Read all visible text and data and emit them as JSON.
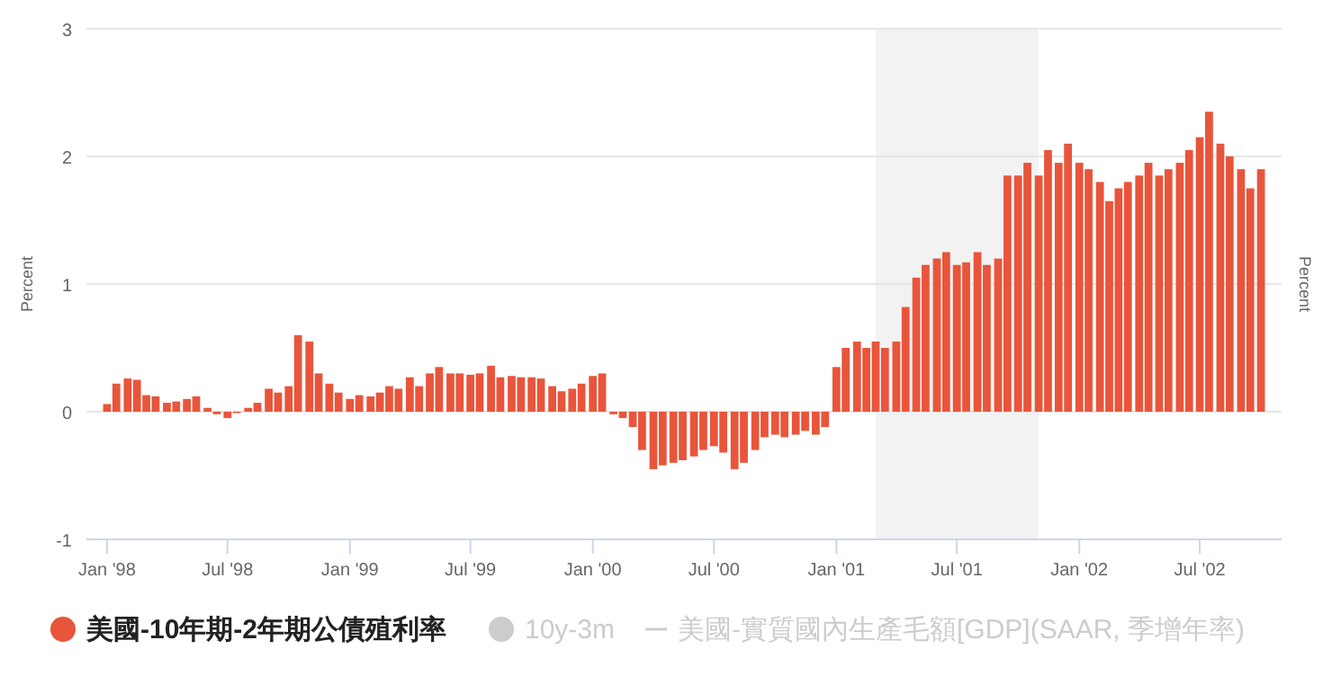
{
  "chart_data": {
    "type": "bar",
    "ylabel": "Percent",
    "y2label": "Percent",
    "x": [
      "1998-01-01",
      "1998-01-15",
      "1998-02-01",
      "1998-02-15",
      "1998-03-01",
      "1998-03-15",
      "1998-04-01",
      "1998-04-15",
      "1998-05-01",
      "1998-05-15",
      "1998-06-01",
      "1998-06-15",
      "1998-07-01",
      "1998-07-15",
      "1998-08-01",
      "1998-08-15",
      "1998-09-01",
      "1998-09-15",
      "1998-10-01",
      "1998-10-15",
      "1998-11-01",
      "1998-11-15",
      "1998-12-01",
      "1998-12-15",
      "1999-01-01",
      "1999-01-15",
      "1999-02-01",
      "1999-02-15",
      "1999-03-01",
      "1999-03-15",
      "1999-04-01",
      "1999-04-15",
      "1999-05-01",
      "1999-05-15",
      "1999-06-01",
      "1999-06-15",
      "1999-07-01",
      "1999-07-15",
      "1999-08-01",
      "1999-08-15",
      "1999-09-01",
      "1999-09-15",
      "1999-10-01",
      "1999-10-15",
      "1999-11-01",
      "1999-11-15",
      "1999-12-01",
      "1999-12-15",
      "2000-01-01",
      "2000-01-15",
      "2000-02-01",
      "2000-02-15",
      "2000-03-01",
      "2000-03-15",
      "2000-04-01",
      "2000-04-15",
      "2000-05-01",
      "2000-05-15",
      "2000-06-01",
      "2000-06-15",
      "2000-07-01",
      "2000-07-15",
      "2000-08-01",
      "2000-08-15",
      "2000-09-01",
      "2000-09-15",
      "2000-10-01",
      "2000-10-15",
      "2000-11-01",
      "2000-11-15",
      "2000-12-01",
      "2000-12-15",
      "2001-01-01",
      "2001-01-15",
      "2001-02-01",
      "2001-02-15",
      "2001-03-01",
      "2001-03-15",
      "2001-04-01",
      "2001-04-15",
      "2001-05-01",
      "2001-05-15",
      "2001-06-01",
      "2001-06-15",
      "2001-07-01",
      "2001-07-15",
      "2001-08-01",
      "2001-08-15",
      "2001-09-01",
      "2001-09-15",
      "2001-10-01",
      "2001-10-15",
      "2001-11-01",
      "2001-11-15",
      "2001-12-01",
      "2001-12-15",
      "2002-01-01",
      "2002-01-15",
      "2002-02-01",
      "2002-02-15",
      "2002-03-01",
      "2002-03-15",
      "2002-04-01",
      "2002-04-15",
      "2002-05-01",
      "2002-05-15",
      "2002-06-01",
      "2002-06-15",
      "2002-07-01",
      "2002-07-15",
      "2002-08-01",
      "2002-08-15",
      "2002-09-01",
      "2002-09-15",
      "2002-10-01"
    ],
    "series": [
      {
        "name": "美國-10年期-2年期公債殖利率",
        "color": "#e8553b",
        "values": [
          0.06,
          0.22,
          0.26,
          0.25,
          0.13,
          0.12,
          0.07,
          0.08,
          0.1,
          0.12,
          0.03,
          -0.02,
          -0.05,
          -0.01,
          0.03,
          0.07,
          0.18,
          0.15,
          0.2,
          0.6,
          0.55,
          0.3,
          0.22,
          0.15,
          0.1,
          0.13,
          0.12,
          0.15,
          0.2,
          0.18,
          0.27,
          0.2,
          0.3,
          0.35,
          0.3,
          0.3,
          0.29,
          0.3,
          0.36,
          0.27,
          0.28,
          0.27,
          0.27,
          0.26,
          0.2,
          0.16,
          0.18,
          0.22,
          0.28,
          0.3,
          -0.02,
          -0.05,
          -0.12,
          -0.3,
          -0.45,
          -0.42,
          -0.4,
          -0.38,
          -0.35,
          -0.3,
          -0.27,
          -0.32,
          -0.45,
          -0.4,
          -0.3,
          -0.2,
          -0.18,
          -0.2,
          -0.18,
          -0.15,
          -0.18,
          -0.12,
          0.35,
          0.5,
          0.55,
          0.5,
          0.55,
          0.5,
          0.55,
          0.82,
          1.05,
          1.15,
          1.2,
          1.25,
          1.15,
          1.17,
          1.25,
          1.15,
          1.2,
          1.85,
          1.85,
          1.95,
          1.85,
          2.05,
          1.95,
          2.1,
          1.95,
          1.9,
          1.8,
          1.65,
          1.75,
          1.8,
          1.85,
          1.95,
          1.85,
          1.9,
          1.95,
          2.05,
          2.15,
          2.35,
          2.1,
          2.0,
          1.9,
          1.75,
          1.9
        ]
      },
      {
        "name": "10y-3m",
        "color": "#cccccc",
        "values": [
          null,
          null,
          null,
          null,
          null,
          null,
          null,
          null,
          null,
          null,
          null,
          null,
          null,
          null,
          null,
          null,
          null,
          null,
          null,
          null,
          null,
          null,
          null,
          null,
          null,
          null,
          null,
          null,
          null,
          null,
          null,
          null,
          null,
          null,
          null,
          null,
          null,
          null,
          null,
          null,
          null,
          null,
          null,
          null,
          null,
          null,
          null,
          null,
          null,
          null,
          null,
          null,
          null,
          null,
          null,
          null,
          null,
          null,
          null,
          null,
          null,
          null,
          null,
          null,
          null,
          null,
          null,
          null,
          null,
          null,
          null,
          null,
          null,
          null,
          null,
          null,
          null,
          null,
          null,
          null,
          null,
          null,
          null,
          null,
          null,
          null,
          null,
          null,
          null,
          null,
          null,
          null,
          null,
          null,
          null,
          null,
          null,
          null,
          null,
          null,
          null,
          null,
          null,
          null,
          null,
          null,
          null,
          null,
          null,
          null,
          null,
          null,
          null,
          null,
          null
        ]
      },
      {
        "name": "美國-實質國內生產毛額[GDP](SAAR, 季增年率)",
        "color": "#cccccc",
        "type": "line",
        "values": [
          null,
          null,
          null,
          null,
          null,
          null,
          null,
          null,
          null,
          null,
          null,
          null,
          null,
          null,
          null,
          null,
          null,
          null,
          null,
          null,
          null,
          null,
          null,
          null,
          null,
          null,
          null,
          null,
          null,
          null,
          null,
          null,
          null,
          null,
          null,
          null,
          null,
          null,
          null,
          null,
          null,
          null,
          null,
          null,
          null,
          null,
          null,
          null,
          null,
          null,
          null,
          null,
          null,
          null,
          null,
          null,
          null,
          null,
          null,
          null,
          null,
          null,
          null,
          null,
          null,
          null,
          null,
          null,
          null,
          null,
          null,
          null,
          null,
          null,
          null,
          null,
          null,
          null,
          null,
          null,
          null,
          null,
          null,
          null,
          null,
          null,
          null,
          null,
          null,
          null,
          null,
          null,
          null,
          null,
          null,
          null,
          null,
          null,
          null,
          null,
          null,
          null,
          null,
          null,
          null,
          null,
          null,
          null,
          null,
          null,
          null,
          null,
          null,
          null,
          null
        ]
      }
    ],
    "xlim": [
      "1997-12-01",
      "2002-11-01"
    ],
    "xticks": [
      {
        "value": "1998-01",
        "label": "Jan '98"
      },
      {
        "value": "1998-07",
        "label": "Jul '98"
      },
      {
        "value": "1999-01",
        "label": "Jan '99"
      },
      {
        "value": "1999-07",
        "label": "Jul '99"
      },
      {
        "value": "2000-01",
        "label": "Jan '00"
      },
      {
        "value": "2000-07",
        "label": "Jul '00"
      },
      {
        "value": "2001-01",
        "label": "Jan '01"
      },
      {
        "value": "2001-07",
        "label": "Jul '01"
      },
      {
        "value": "2002-01",
        "label": "Jan '02"
      },
      {
        "value": "2002-07",
        "label": "Jul '02"
      }
    ],
    "ylim": [
      -1,
      3
    ],
    "yticks": [
      -1,
      0,
      1,
      2,
      3
    ],
    "bands": [
      {
        "axis": "x",
        "from": "2001-03-01",
        "to": "2001-11-01",
        "color": "#f2f2f2"
      }
    ],
    "grid": "y",
    "legend": "bottom"
  }
}
